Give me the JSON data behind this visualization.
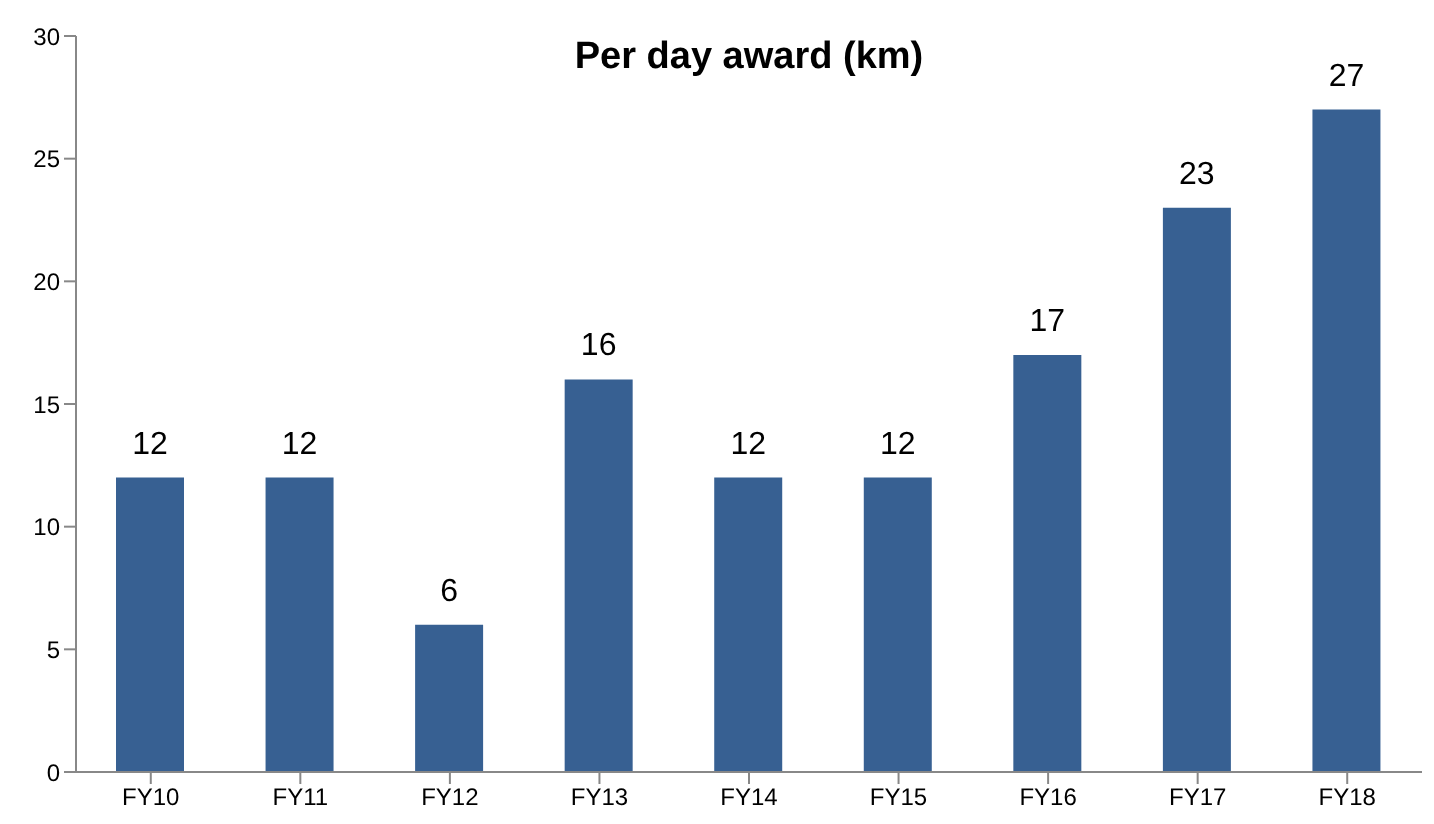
{
  "chart_data": {
    "type": "bar",
    "title": "Per day award (km)",
    "categories": [
      "FY10",
      "FY11",
      "FY12",
      "FY13",
      "FY14",
      "FY15",
      "FY16",
      "FY17",
      "FY18"
    ],
    "values": [
      12,
      12,
      6,
      16,
      12,
      12,
      17,
      23,
      27
    ],
    "color": "#376092",
    "ylim": [
      0,
      30
    ],
    "yticks": [
      0,
      5,
      10,
      15,
      20,
      25,
      30
    ],
    "grid": false,
    "data_labels": true
  }
}
